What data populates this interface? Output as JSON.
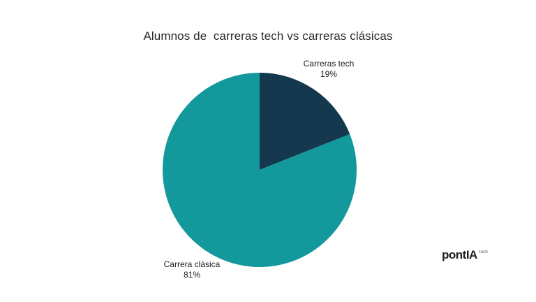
{
  "page": {
    "background_color": "#ffffff"
  },
  "chart_data": {
    "type": "pie",
    "title": "Alumnos de  carreras tech vs carreras clásicas",
    "direction": "clockwise",
    "start_angle_deg": 0,
    "legend": "none",
    "labels_position": "outside",
    "slices": [
      {
        "id": "tech",
        "label": "Carreras tech",
        "value": 19,
        "pct_label": "19%",
        "color": "#14384D"
      },
      {
        "id": "clasica",
        "label": "Carrera clásica",
        "value": 81,
        "pct_label": "81%",
        "color": "#13989B"
      }
    ]
  },
  "branding": {
    "wordmark": "pontIA",
    "suffix": "tech",
    "color": "#1f1f1f"
  }
}
